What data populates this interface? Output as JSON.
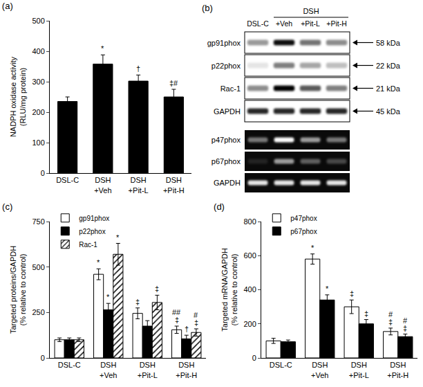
{
  "chart_data": [
    {
      "type": "bar",
      "title": "(a)",
      "categories": [
        "DSL-C",
        "DSH +Veh",
        "DSH +Pit-L",
        "DSH +Pit-H"
      ],
      "values": [
        235,
        358,
        302,
        250
      ],
      "errors": [
        15,
        30,
        20,
        25
      ],
      "marks": [
        [],
        [
          "*"
        ],
        [
          "†"
        ],
        [
          "‡#"
        ]
      ],
      "color": "#000000",
      "y_label": [
        "NADPH oxidase activity",
        "(RLU/mg protein)"
      ],
      "ylim": [
        0,
        500
      ],
      "yticks": [
        0,
        100,
        200,
        300,
        400,
        500
      ],
      "grid": false
    },
    {
      "type": "bar",
      "title": "(c)",
      "categories": [
        "DSL-C",
        "DSH +Veh",
        "DSH +Pit-L",
        "DSH +Pit-H"
      ],
      "series": [
        {
          "name": "gp91phox",
          "color": "#ffffff",
          "values": [
            100,
            460,
            245,
            155
          ],
          "errors": [
            10,
            30,
            30,
            20
          ],
          "marks": [
            [],
            [
              "*"
            ],
            [
              "‡"
            ],
            [
              "‡",
              "##"
            ]
          ]
        },
        {
          "name": "p22phox",
          "color": "#000000",
          "values": [
            100,
            265,
            175,
            105
          ],
          "errors": [
            10,
            35,
            30,
            20
          ],
          "marks": [
            [],
            [
              "*"
            ],
            [],
            [
              "†"
            ]
          ]
        },
        {
          "name": "Rac-1",
          "color": "#ffffff",
          "marker": "hatched",
          "values": [
            100,
            570,
            305,
            140
          ],
          "errors": [
            10,
            60,
            40,
            20
          ],
          "marks": [
            [],
            [
              "*"
            ],
            [
              "‡"
            ],
            [
              "‡",
              "#"
            ]
          ]
        }
      ],
      "y_label": [
        "Targeted proteins/GAPDH",
        "(% relative to control)"
      ],
      "ylim": [
        0,
        750
      ],
      "yticks": [
        0,
        250,
        500,
        750
      ],
      "grid": false,
      "legend": "upper left"
    },
    {
      "type": "bar",
      "title": "(d)",
      "categories": [
        "DSL-C",
        "DSH +Veh",
        "DSH +Pit-L",
        "DSH +Pit-H"
      ],
      "series": [
        {
          "name": "p47phox",
          "color": "#ffffff",
          "values": [
            100,
            580,
            300,
            155
          ],
          "errors": [
            15,
            30,
            40,
            20
          ],
          "marks": [
            [],
            [
              "*"
            ],
            [
              "‡"
            ],
            [
              "‡",
              "#"
            ]
          ]
        },
        {
          "name": "p67phox",
          "color": "#000000",
          "values": [
            95,
            340,
            200,
            125
          ],
          "errors": [
            10,
            30,
            25,
            15
          ],
          "marks": [
            [],
            [
              "*"
            ],
            [
              "‡"
            ],
            [
              "‡",
              "#"
            ]
          ]
        }
      ],
      "y_label": [
        "Targeted mRNA/GAPDH",
        "(% relative to control)"
      ],
      "ylim": [
        0,
        800
      ],
      "yticks": [
        0,
        200,
        400,
        600,
        800
      ],
      "grid": false,
      "legend": "upper left"
    }
  ],
  "blot": {
    "title": "(b)",
    "lanes": [
      "DSL-C",
      "+Veh",
      "+Pit-L",
      "+Pit-H"
    ],
    "group": {
      "label": "DSH",
      "lanes": [
        "+Veh",
        "+Pit-L",
        "+Pit-H"
      ]
    },
    "western": [
      {
        "label": "gp91phox",
        "size": "58 kDa",
        "band_intensity": [
          0.4,
          0.95,
          0.55,
          0.45
        ]
      },
      {
        "label": "p22phox",
        "size": "22 kDa",
        "band_intensity": [
          0.1,
          0.5,
          0.35,
          0.25
        ]
      },
      {
        "label": "Rac-1",
        "size": "21 kDa",
        "band_intensity": [
          0.45,
          1.0,
          0.65,
          0.5
        ]
      },
      {
        "label": "GAPDH",
        "size": "45 kDa",
        "band_intensity": [
          0.85,
          0.85,
          0.85,
          0.85
        ]
      }
    ],
    "gel": [
      {
        "label": "p47phox",
        "band_intensity": [
          0.45,
          1.0,
          0.6,
          0.45
        ]
      },
      {
        "label": "p67phox",
        "band_intensity": [
          0.1,
          0.6,
          0.35,
          0.25
        ]
      },
      {
        "label": "GAPDH",
        "band_intensity": [
          0.9,
          0.9,
          0.9,
          0.9
        ]
      }
    ]
  }
}
